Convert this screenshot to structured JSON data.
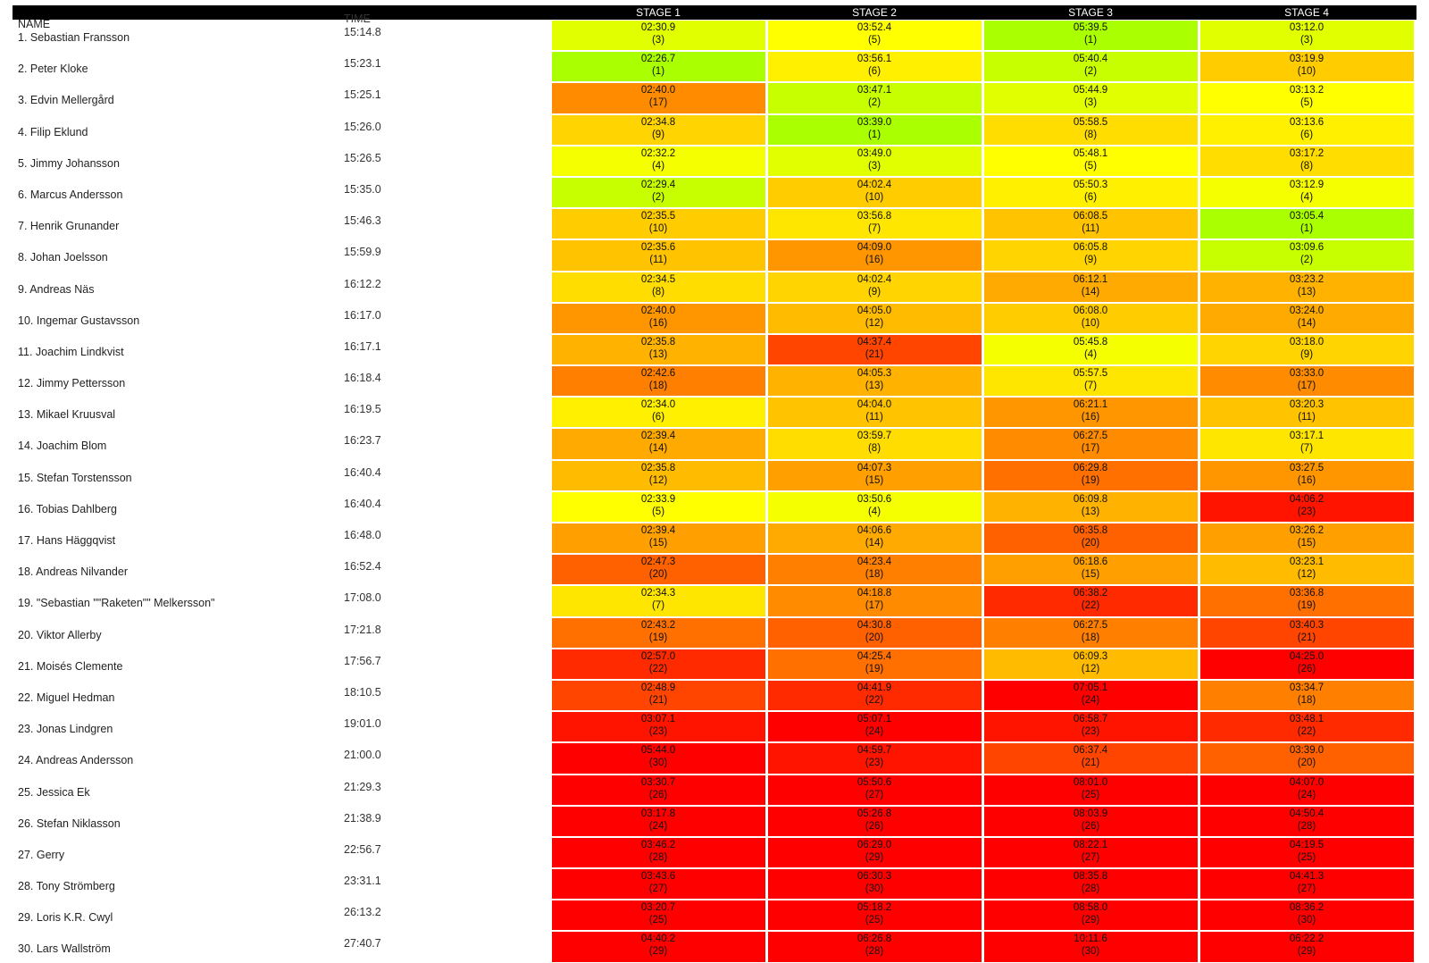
{
  "headers": {
    "name": "NAME",
    "time": "TIME",
    "stages": [
      "STAGE 1",
      "STAGE 2",
      "STAGE 3",
      "STAGE 4"
    ]
  },
  "rank_colors": [
    "#aaff00",
    "#c8ff00",
    "#e2ff00",
    "#f5ff00",
    "#ffff00",
    "#fff000",
    "#ffe600",
    "#ffdd00",
    "#ffd400",
    "#ffcc00",
    "#ffc300",
    "#ffbb00",
    "#ffb300",
    "#ffaa00",
    "#ffa000",
    "#ff9600",
    "#ff8c00",
    "#ff7f00",
    "#ff7000",
    "#ff6000",
    "#ff4500",
    "#ff2a00",
    "#ff1400",
    "#ff0000",
    "#ff0000",
    "#ff0000",
    "#ff0000",
    "#ff0000",
    "#ff0000",
    "#ff0000"
  ],
  "rows": [
    {
      "name": "1. Sebastian Fransson",
      "time": "15:14.8",
      "stages": [
        {
          "time": "02:30.9",
          "pos": "(3)",
          "rank": 3
        },
        {
          "time": "03:52.4",
          "pos": "(5)",
          "rank": 5
        },
        {
          "time": "05:39.5",
          "pos": "(1)",
          "rank": 1
        },
        {
          "time": "03:12.0",
          "pos": "(3)",
          "rank": 3
        }
      ]
    },
    {
      "name": "2. Peter Kloke",
      "time": "15:23.1",
      "stages": [
        {
          "time": "02:26.7",
          "pos": "(1)",
          "rank": 1
        },
        {
          "time": "03:56.1",
          "pos": "(6)",
          "rank": 6
        },
        {
          "time": "05:40.4",
          "pos": "(2)",
          "rank": 2
        },
        {
          "time": "03:19.9",
          "pos": "(10)",
          "rank": 10
        }
      ]
    },
    {
      "name": "3. Edvin Mellergård",
      "time": "15:25.1",
      "stages": [
        {
          "time": "02:40.0",
          "pos": "(17)",
          "rank": 17
        },
        {
          "time": "03:47.1",
          "pos": "(2)",
          "rank": 2
        },
        {
          "time": "05:44.9",
          "pos": "(3)",
          "rank": 3
        },
        {
          "time": "03:13.2",
          "pos": "(5)",
          "rank": 5
        }
      ]
    },
    {
      "name": "4. Filip Eklund",
      "time": "15:26.0",
      "stages": [
        {
          "time": "02:34.8",
          "pos": "(9)",
          "rank": 9
        },
        {
          "time": "03:39.0",
          "pos": "(1)",
          "rank": 1
        },
        {
          "time": "05:58.5",
          "pos": "(8)",
          "rank": 8
        },
        {
          "time": "03:13.6",
          "pos": "(6)",
          "rank": 6
        }
      ]
    },
    {
      "name": "5. Jimmy Johansson",
      "time": "15:26.5",
      "stages": [
        {
          "time": "02:32.2",
          "pos": "(4)",
          "rank": 4
        },
        {
          "time": "03:49.0",
          "pos": "(3)",
          "rank": 3
        },
        {
          "time": "05:48.1",
          "pos": "(5)",
          "rank": 5
        },
        {
          "time": "03:17.2",
          "pos": "(8)",
          "rank": 8
        }
      ]
    },
    {
      "name": "6. Marcus Andersson",
      "time": "15:35.0",
      "stages": [
        {
          "time": "02:29.4",
          "pos": "(2)",
          "rank": 2
        },
        {
          "time": "04:02.4",
          "pos": "(10)",
          "rank": 10
        },
        {
          "time": "05:50.3",
          "pos": "(6)",
          "rank": 6
        },
        {
          "time": "03:12.9",
          "pos": "(4)",
          "rank": 4
        }
      ]
    },
    {
      "name": "7. Henrik Grunander",
      "time": "15:46.3",
      "stages": [
        {
          "time": "02:35.5",
          "pos": "(10)",
          "rank": 10
        },
        {
          "time": "03:56.8",
          "pos": "(7)",
          "rank": 7
        },
        {
          "time": "06:08.5",
          "pos": "(11)",
          "rank": 11
        },
        {
          "time": "03:05.4",
          "pos": "(1)",
          "rank": 1
        }
      ]
    },
    {
      "name": "8. Johan Joelsson",
      "time": "15:59.9",
      "stages": [
        {
          "time": "02:35.6",
          "pos": "(11)",
          "rank": 11
        },
        {
          "time": "04:09.0",
          "pos": "(16)",
          "rank": 16
        },
        {
          "time": "06:05.8",
          "pos": "(9)",
          "rank": 9
        },
        {
          "time": "03:09.6",
          "pos": "(2)",
          "rank": 2
        }
      ]
    },
    {
      "name": "9. Andreas Näs",
      "time": "16:12.2",
      "stages": [
        {
          "time": "02:34.5",
          "pos": "(8)",
          "rank": 8
        },
        {
          "time": "04:02.4",
          "pos": "(9)",
          "rank": 9
        },
        {
          "time": "06:12.1",
          "pos": "(14)",
          "rank": 14
        },
        {
          "time": "03:23.2",
          "pos": "(13)",
          "rank": 13
        }
      ]
    },
    {
      "name": "10. Ingemar Gustavsson",
      "time": "16:17.0",
      "stages": [
        {
          "time": "02:40.0",
          "pos": "(16)",
          "rank": 16
        },
        {
          "time": "04:05.0",
          "pos": "(12)",
          "rank": 12
        },
        {
          "time": "06:08.0",
          "pos": "(10)",
          "rank": 10
        },
        {
          "time": "03:24.0",
          "pos": "(14)",
          "rank": 14
        }
      ]
    },
    {
      "name": "11. Joachim Lindkvist",
      "time": "16:17.1",
      "stages": [
        {
          "time": "02:35.8",
          "pos": "(13)",
          "rank": 13
        },
        {
          "time": "04:37.4",
          "pos": "(21)",
          "rank": 21
        },
        {
          "time": "05:45.8",
          "pos": "(4)",
          "rank": 4
        },
        {
          "time": "03:18.0",
          "pos": "(9)",
          "rank": 9
        }
      ]
    },
    {
      "name": "12. Jimmy Pettersson",
      "time": "16:18.4",
      "stages": [
        {
          "time": "02:42.6",
          "pos": "(18)",
          "rank": 18
        },
        {
          "time": "04:05.3",
          "pos": "(13)",
          "rank": 13
        },
        {
          "time": "05:57.5",
          "pos": "(7)",
          "rank": 7
        },
        {
          "time": "03:33.0",
          "pos": "(17)",
          "rank": 17
        }
      ]
    },
    {
      "name": "13. Mikael Kruusval",
      "time": "16:19.5",
      "stages": [
        {
          "time": "02:34.0",
          "pos": "(6)",
          "rank": 6
        },
        {
          "time": "04:04.0",
          "pos": "(11)",
          "rank": 11
        },
        {
          "time": "06:21.1",
          "pos": "(16)",
          "rank": 16
        },
        {
          "time": "03:20.3",
          "pos": "(11)",
          "rank": 11
        }
      ]
    },
    {
      "name": "14. Joachim Blom",
      "time": "16:23.7",
      "stages": [
        {
          "time": "02:39.4",
          "pos": "(14)",
          "rank": 14
        },
        {
          "time": "03:59.7",
          "pos": "(8)",
          "rank": 8
        },
        {
          "time": "06:27.5",
          "pos": "(17)",
          "rank": 17
        },
        {
          "time": "03:17.1",
          "pos": "(7)",
          "rank": 7
        }
      ]
    },
    {
      "name": "15. Stefan Torstensson",
      "time": "16:40.4",
      "stages": [
        {
          "time": "02:35.8",
          "pos": "(12)",
          "rank": 12
        },
        {
          "time": "04:07.3",
          "pos": "(15)",
          "rank": 15
        },
        {
          "time": "06:29.8",
          "pos": "(19)",
          "rank": 19
        },
        {
          "time": "03:27.5",
          "pos": "(16)",
          "rank": 16
        }
      ]
    },
    {
      "name": "16. Tobias Dahlberg",
      "time": "16:40.4",
      "stages": [
        {
          "time": "02:33.9",
          "pos": "(5)",
          "rank": 5
        },
        {
          "time": "03:50.6",
          "pos": "(4)",
          "rank": 4
        },
        {
          "time": "06:09.8",
          "pos": "(13)",
          "rank": 13
        },
        {
          "time": "04:06.2",
          "pos": "(23)",
          "rank": 23
        }
      ]
    },
    {
      "name": "17. Hans Häggqvist",
      "time": "16:48.0",
      "stages": [
        {
          "time": "02:39.4",
          "pos": "(15)",
          "rank": 15
        },
        {
          "time": "04:06.6",
          "pos": "(14)",
          "rank": 14
        },
        {
          "time": "06:35.8",
          "pos": "(20)",
          "rank": 20
        },
        {
          "time": "03:26.2",
          "pos": "(15)",
          "rank": 15
        }
      ]
    },
    {
      "name": "18. Andreas Nilvander",
      "time": "16:52.4",
      "stages": [
        {
          "time": "02:47.3",
          "pos": "(20)",
          "rank": 20
        },
        {
          "time": "04:23.4",
          "pos": "(18)",
          "rank": 18
        },
        {
          "time": "06:18.6",
          "pos": "(15)",
          "rank": 15
        },
        {
          "time": "03:23.1",
          "pos": "(12)",
          "rank": 12
        }
      ]
    },
    {
      "name": "19. \"Sebastian \"\"Raketen\"\" Melkersson\"",
      "time": "17:08.0",
      "stages": [
        {
          "time": "02:34.3",
          "pos": "(7)",
          "rank": 7
        },
        {
          "time": "04:18.8",
          "pos": "(17)",
          "rank": 17
        },
        {
          "time": "06:38.2",
          "pos": "(22)",
          "rank": 22
        },
        {
          "time": "03:36.8",
          "pos": "(19)",
          "rank": 19
        }
      ]
    },
    {
      "name": "20. Viktor Allerby",
      "time": "17:21.8",
      "stages": [
        {
          "time": "02:43.2",
          "pos": "(19)",
          "rank": 19
        },
        {
          "time": "04:30.8",
          "pos": "(20)",
          "rank": 20
        },
        {
          "time": "06:27.5",
          "pos": "(18)",
          "rank": 18
        },
        {
          "time": "03:40.3",
          "pos": "(21)",
          "rank": 21
        }
      ]
    },
    {
      "name": "21. Moisés Clemente",
      "time": "17:56.7",
      "stages": [
        {
          "time": "02:57.0",
          "pos": "(22)",
          "rank": 22
        },
        {
          "time": "04:25.4",
          "pos": "(19)",
          "rank": 19
        },
        {
          "time": "06:09.3",
          "pos": "(12)",
          "rank": 12
        },
        {
          "time": "04:25.0",
          "pos": "(26)",
          "rank": 26
        }
      ]
    },
    {
      "name": "22. Miguel Hedman",
      "time": "18:10.5",
      "stages": [
        {
          "time": "02:48.9",
          "pos": "(21)",
          "rank": 21
        },
        {
          "time": "04:41.9",
          "pos": "(22)",
          "rank": 22
        },
        {
          "time": "07:05.1",
          "pos": "(24)",
          "rank": 24
        },
        {
          "time": "03:34.7",
          "pos": "(18)",
          "rank": 18
        }
      ]
    },
    {
      "name": "23. Jonas Lindgren",
      "time": "19:01.0",
      "stages": [
        {
          "time": "03:07.1",
          "pos": "(23)",
          "rank": 23
        },
        {
          "time": "05:07.1",
          "pos": "(24)",
          "rank": 24
        },
        {
          "time": "06:58.7",
          "pos": "(23)",
          "rank": 23
        },
        {
          "time": "03:48.1",
          "pos": "(22)",
          "rank": 22
        }
      ]
    },
    {
      "name": "24. Andreas Andersson",
      "time": "21:00.0",
      "stages": [
        {
          "time": "05:44.0",
          "pos": "(30)",
          "rank": 30
        },
        {
          "time": "04:59.7",
          "pos": "(23)",
          "rank": 23
        },
        {
          "time": "06:37.4",
          "pos": "(21)",
          "rank": 21
        },
        {
          "time": "03:39.0",
          "pos": "(20)",
          "rank": 20
        }
      ]
    },
    {
      "name": "25. Jessica Ek",
      "time": "21:29.3",
      "stages": [
        {
          "time": "03:30.7",
          "pos": "(26)",
          "rank": 26
        },
        {
          "time": "05:50.6",
          "pos": "(27)",
          "rank": 27
        },
        {
          "time": "08:01.0",
          "pos": "(25)",
          "rank": 25
        },
        {
          "time": "04:07.0",
          "pos": "(24)",
          "rank": 24
        }
      ]
    },
    {
      "name": "26. Stefan Niklasson",
      "time": "21:38.9",
      "stages": [
        {
          "time": "03:17.8",
          "pos": "(24)",
          "rank": 24
        },
        {
          "time": "05:26.8",
          "pos": "(26)",
          "rank": 26
        },
        {
          "time": "08:03.9",
          "pos": "(26)",
          "rank": 26
        },
        {
          "time": "04:50.4",
          "pos": "(28)",
          "rank": 28
        }
      ]
    },
    {
      "name": "27. Gerry",
      "time": "22:56.7",
      "stages": [
        {
          "time": "03:46.2",
          "pos": "(28)",
          "rank": 28
        },
        {
          "time": "06:29.0",
          "pos": "(29)",
          "rank": 29
        },
        {
          "time": "08:22.1",
          "pos": "(27)",
          "rank": 27
        },
        {
          "time": "04:19.5",
          "pos": "(25)",
          "rank": 25
        }
      ]
    },
    {
      "name": "28. Tony Strömberg",
      "time": "23:31.1",
      "stages": [
        {
          "time": "03:43.6",
          "pos": "(27)",
          "rank": 27
        },
        {
          "time": "06:30.3",
          "pos": "(30)",
          "rank": 30
        },
        {
          "time": "08:35.8",
          "pos": "(28)",
          "rank": 28
        },
        {
          "time": "04:41.3",
          "pos": "(27)",
          "rank": 27
        }
      ]
    },
    {
      "name": "29. Loris K.R. Cwyl",
      "time": "26:13.2",
      "stages": [
        {
          "time": "03:20.7",
          "pos": "(25)",
          "rank": 25
        },
        {
          "time": "05:18.2",
          "pos": "(25)",
          "rank": 25
        },
        {
          "time": "08:58.0",
          "pos": "(29)",
          "rank": 29
        },
        {
          "time": "08:36.2",
          "pos": "(30)",
          "rank": 30
        }
      ]
    },
    {
      "name": "30. Lars Wallström",
      "time": "27:40.7",
      "stages": [
        {
          "time": "04:40.2",
          "pos": "(29)",
          "rank": 29
        },
        {
          "time": "06:26.8",
          "pos": "(28)",
          "rank": 28
        },
        {
          "time": "10:11.6",
          "pos": "(30)",
          "rank": 30
        },
        {
          "time": "06:22.2",
          "pos": "(29)",
          "rank": 29
        }
      ]
    }
  ]
}
